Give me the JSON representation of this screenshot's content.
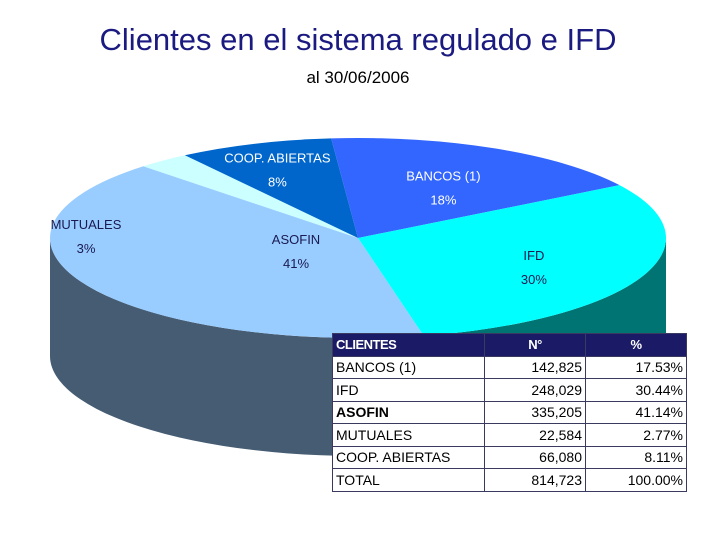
{
  "header": {
    "title": "Clientes en el sistema regulado e IFD",
    "subtitle": "al 30/06/2006"
  },
  "chart_data": {
    "type": "pie",
    "style": "3d",
    "slices": [
      {
        "name": "BANCOS (1)",
        "value_label": "18%",
        "value": 17.53,
        "color": "#3366ff"
      },
      {
        "name": "IFD",
        "value_label": "30%",
        "value": 30.44,
        "color": "#00ffff"
      },
      {
        "name": "ASOFIN",
        "value_label": "41%",
        "value": 41.14,
        "color": "#99ccff"
      },
      {
        "name": "MUTUALES",
        "value_label": "3%",
        "value": 2.77,
        "color": "#ccffff"
      },
      {
        "name": "COOP. ABIERTAS",
        "value_label": "8%",
        "value": 8.11,
        "color": "#0066cc"
      }
    ]
  },
  "table": {
    "headers": [
      "CLIENTES",
      "N°",
      "%"
    ],
    "rows": [
      {
        "name": "BANCOS (1)",
        "n": "142,825",
        "pct": "17.53%",
        "bold": false
      },
      {
        "name": "IFD",
        "n": "248,029",
        "pct": "30.44%",
        "bold": false
      },
      {
        "name": "ASOFIN",
        "n": "335,205",
        "pct": "41.14%",
        "bold": true
      },
      {
        "name": "MUTUALES",
        "n": "22,584",
        "pct": "2.77%",
        "bold": false
      },
      {
        "name": "COOP. ABIERTAS",
        "n": "66,080",
        "pct": "8.11%",
        "bold": false
      },
      {
        "name": "TOTAL",
        "n": "814,723",
        "pct": "100.00%",
        "bold": false
      }
    ]
  }
}
